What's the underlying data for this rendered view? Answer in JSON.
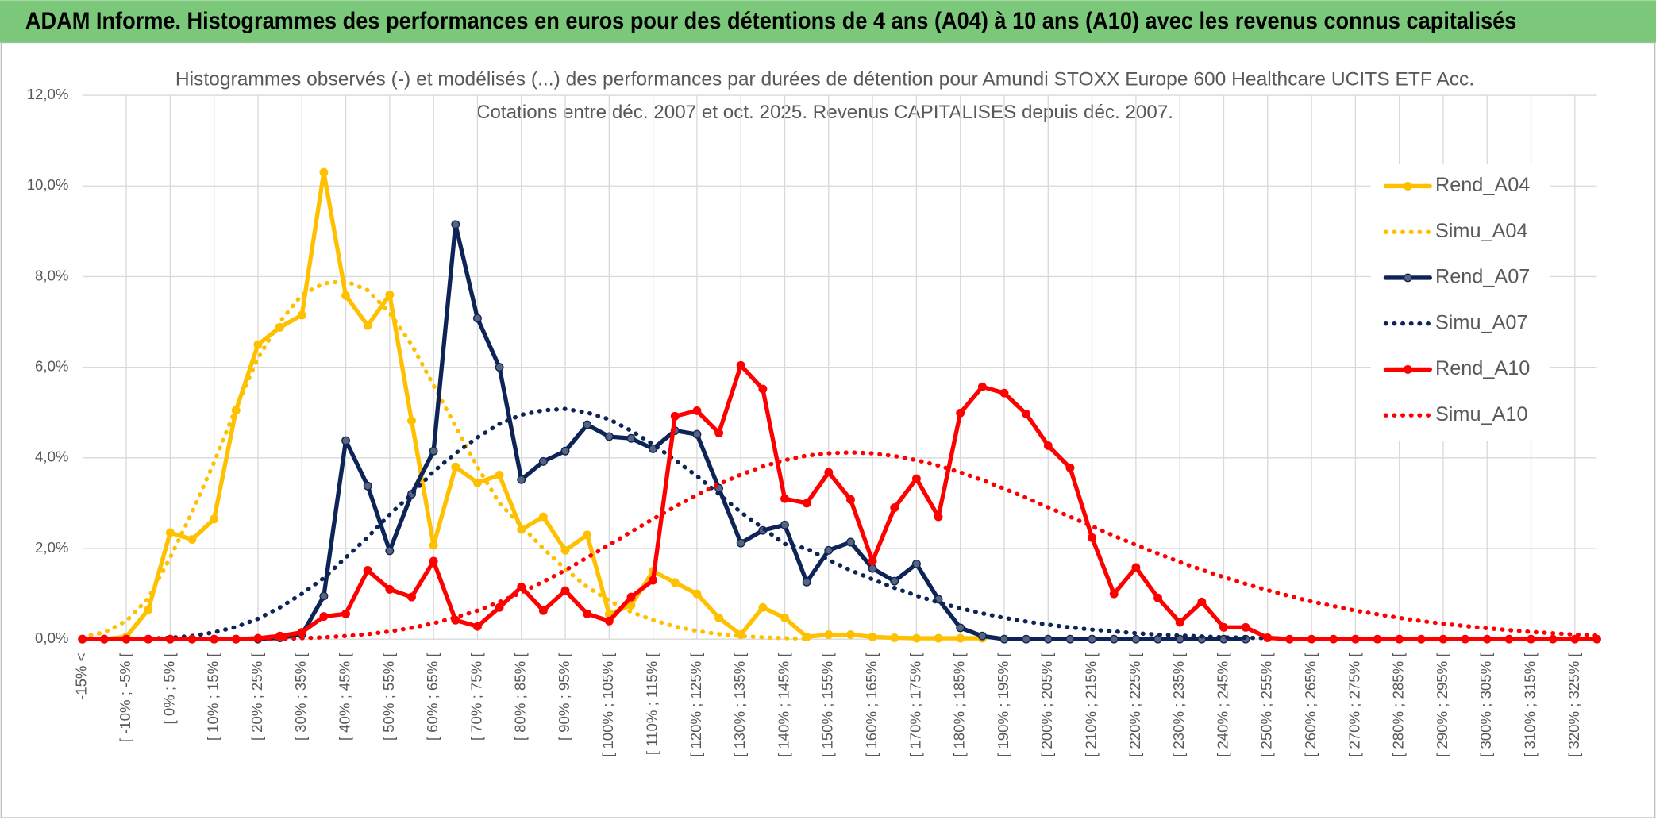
{
  "chart_data": {
    "type": "line",
    "title": "ADAM Informe. Histogrammes des performances en euros pour des détentions de 4 ans (A04) à 10 ans (A10) avec les revenus connus capitalisés",
    "subtitle": [
      "Histogrammes observés (-) et modélisés (...) des performances par durées de détention pour Amundi STOXX Europe 600 Healthcare UCITS ETF Acc.",
      "Cotations entre déc. 2007 et oct. 2025. Revenus CAPITALISES depuis déc. 2007."
    ],
    "categories": [
      "-15% <",
      null,
      "[ -10% ; -5% [",
      null,
      "[ 0% ; 5% [",
      null,
      "[ 10% ; 15% [",
      null,
      "[ 20% ; 25% [",
      null,
      "[ 30% ; 35% [",
      null,
      "[ 40% ; 45% [",
      null,
      "[ 50% ; 55% [",
      null,
      "[ 60% ; 65% [",
      null,
      "[ 70% ; 75% [",
      null,
      "[ 80% ; 85% [",
      null,
      "[ 90% ; 95% [",
      null,
      "[ 100% ; 105% [",
      null,
      "[ 110% ; 115% [",
      null,
      "[ 120% ; 125% [",
      null,
      "[ 130% ; 135% [",
      null,
      "[ 140% ; 145% [",
      null,
      "[ 150% ; 155% [",
      null,
      "[ 160% ; 165% [",
      null,
      "[ 170% ; 175% [",
      null,
      "[ 180% ; 185% [",
      null,
      "[ 190% ; 195% [",
      null,
      "[ 200% ; 205% [",
      null,
      "[ 210% ; 215% [",
      null,
      "[ 220% ; 225% [",
      null,
      "[ 230% ; 235% [",
      null,
      "[ 240% ; 245% [",
      null,
      "[ 250% ; 255% [",
      null,
      "[ 260% ; 265% [",
      null,
      "[ 270% ; 275% [",
      null,
      "[ 280% ; 285% [",
      null,
      "[ 290% ; 295% [",
      null,
      "[ 300% ; 305% [",
      null,
      "[ 310% ; 315% [",
      null,
      "[ 320% ; 325% [",
      null
    ],
    "series": [
      {
        "name": "Rend_A04",
        "color": "#FFC000",
        "style": "solid",
        "values": [
          0,
          0,
          0.05,
          0.65,
          2.35,
          2.2,
          2.65,
          5.05,
          6.5,
          6.88,
          7.15,
          10.3,
          7.58,
          6.92,
          7.6,
          4.82,
          2.07,
          3.8,
          3.45,
          3.62,
          2.42,
          2.7,
          1.96,
          2.3,
          0.55,
          0.75,
          1.5,
          1.25,
          1.0,
          0.47,
          0.1,
          0.7,
          0.47,
          0.05,
          0.1,
          0.1,
          0.05,
          0.03,
          0.02,
          0.02,
          0.02,
          0.02,
          null,
          null,
          null,
          null,
          null,
          null,
          null,
          null,
          null,
          null,
          null,
          null,
          null,
          null,
          null,
          null,
          null,
          null,
          null,
          null,
          null,
          null,
          null,
          null,
          null,
          null,
          null,
          null
        ]
      },
      {
        "name": "Simu_A04",
        "color": "#FFC000",
        "style": "dotted",
        "values": [
          0.05,
          0.15,
          0.4,
          0.9,
          1.8,
          2.8,
          3.9,
          5.1,
          6.2,
          7.0,
          7.6,
          7.85,
          7.9,
          7.7,
          7.2,
          6.5,
          5.6,
          4.7,
          3.8,
          3.0,
          2.5,
          2.0,
          1.55,
          1.15,
          0.85,
          0.6,
          0.42,
          0.28,
          0.18,
          0.11,
          0.07,
          0.04,
          0.02,
          0.01,
          null,
          null,
          null,
          null,
          null,
          null,
          null,
          null,
          null,
          null,
          null,
          null,
          null,
          null,
          null,
          null,
          null,
          null,
          null,
          null,
          null,
          null,
          null,
          null,
          null,
          null,
          null,
          null,
          null,
          null,
          null,
          null,
          null,
          null,
          null,
          null
        ]
      },
      {
        "name": "Rend_A07",
        "color": "#0E2356",
        "style": "solid",
        "values": [
          0,
          0,
          0,
          0,
          0,
          0,
          0,
          0,
          0,
          0.03,
          0.1,
          0.95,
          4.38,
          3.38,
          1.95,
          3.2,
          4.15,
          9.15,
          7.08,
          6.0,
          3.52,
          3.92,
          4.15,
          4.73,
          4.47,
          4.43,
          4.2,
          4.6,
          4.52,
          3.33,
          2.12,
          2.4,
          2.52,
          1.26,
          1.96,
          2.14,
          1.56,
          1.28,
          1.66,
          0.88,
          0.25,
          0.07,
          0,
          0,
          0,
          0,
          0,
          0,
          0,
          0,
          0,
          0,
          0,
          0,
          null,
          null,
          null,
          null,
          null,
          null,
          null,
          null,
          null,
          null,
          null,
          null,
          null,
          null,
          null,
          null
        ]
      },
      {
        "name": "Simu_A07",
        "color": "#0E2356",
        "style": "dotted",
        "values": [
          0,
          0,
          0,
          0.01,
          0.03,
          0.07,
          0.15,
          0.27,
          0.45,
          0.7,
          1.0,
          1.35,
          1.8,
          2.25,
          2.75,
          3.2,
          3.7,
          4.1,
          4.45,
          4.75,
          4.95,
          5.05,
          5.08,
          5.0,
          4.85,
          4.6,
          4.3,
          3.95,
          3.6,
          3.2,
          2.8,
          2.45,
          2.1,
          2.0,
          1.75,
          1.52,
          1.32,
          1.13,
          0.96,
          0.81,
          0.68,
          0.57,
          0.47,
          0.39,
          0.32,
          0.26,
          0.21,
          0.17,
          0.13,
          0.1,
          0.08,
          0.06,
          0.04,
          0.03,
          0.02,
          0.01,
          null,
          null,
          null,
          null,
          null,
          null,
          null,
          null,
          null,
          null,
          null,
          null,
          null,
          null
        ]
      },
      {
        "name": "Rend_A10",
        "color": "#FF0000",
        "style": "solid",
        "values": [
          0,
          0,
          0,
          0,
          0,
          0,
          0,
          0,
          0.02,
          0.07,
          0.15,
          0.5,
          0.56,
          1.52,
          1.1,
          0.93,
          1.72,
          0.42,
          0.28,
          0.7,
          1.15,
          0.63,
          1.07,
          0.56,
          0.4,
          0.93,
          1.3,
          4.92,
          5.04,
          4.55,
          6.04,
          5.52,
          3.1,
          3.0,
          3.68,
          3.08,
          1.72,
          2.9,
          3.54,
          2.7,
          4.99,
          5.57,
          5.43,
          4.97,
          4.27,
          3.78,
          2.24,
          1.0,
          1.58,
          0.91,
          0.37,
          0.82,
          0.26,
          0.26,
          0.03,
          0,
          0,
          0,
          0,
          0,
          0,
          0,
          0,
          0,
          0,
          0,
          0,
          0,
          0,
          0
        ]
      },
      {
        "name": "Simu_A10",
        "color": "#FF0000",
        "style": "dotted",
        "values": [
          0,
          0,
          0,
          0,
          0,
          0,
          0,
          0,
          0,
          0,
          0.02,
          0.04,
          0.07,
          0.11,
          0.17,
          0.25,
          0.35,
          0.48,
          0.63,
          0.82,
          1.03,
          1.27,
          1.52,
          1.8,
          2.08,
          2.37,
          2.65,
          2.92,
          3.18,
          3.42,
          3.63,
          3.81,
          3.95,
          4.05,
          4.1,
          4.12,
          4.1,
          4.04,
          3.95,
          3.83,
          3.68,
          3.51,
          3.32,
          3.12,
          2.91,
          2.7,
          2.49,
          2.28,
          2.08,
          1.89,
          1.7,
          1.53,
          1.37,
          1.22,
          1.08,
          0.95,
          0.83,
          0.73,
          0.63,
          0.55,
          0.47,
          0.4,
          0.34,
          0.29,
          0.24,
          0.2,
          0.16,
          0.13,
          0.1,
          0.08
        ]
      }
    ],
    "ylim": [
      0,
      12
    ],
    "yticks": [
      {
        "value": 0,
        "label": "0,0%"
      },
      {
        "value": 2,
        "label": "2,0%"
      },
      {
        "value": 4,
        "label": "4,0%"
      },
      {
        "value": 6,
        "label": "6,0%"
      },
      {
        "value": 8,
        "label": "8,0%"
      },
      {
        "value": 10,
        "label": "10,0%"
      },
      {
        "value": 12,
        "label": "12,0%"
      }
    ],
    "grid": true,
    "legend": "right"
  }
}
